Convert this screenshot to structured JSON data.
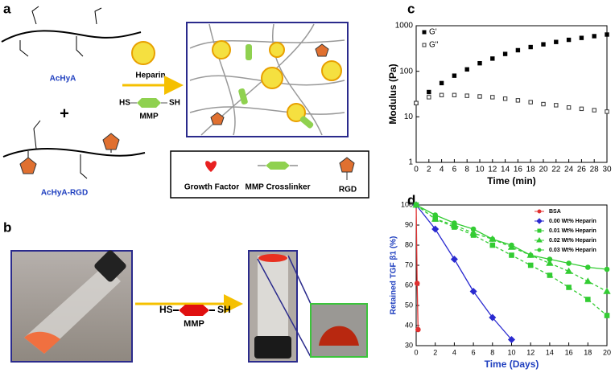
{
  "panels": {
    "a": {
      "label": "a",
      "top_left": "AcHyA",
      "plus": "+",
      "bottom_left": "AcHyA-RGD",
      "arrow_label": "Heparin",
      "linker_left": "HS",
      "linker_right": "SH",
      "linker_name": "MMP",
      "legend": [
        "Growth Factor",
        "MMP Crosslinker",
        "RGD"
      ]
    },
    "b": {
      "label": "b",
      "linker_left": "HS",
      "linker_right": "SH",
      "linker_name": "MMP"
    },
    "c": {
      "label": "c"
    },
    "d": {
      "label": "d"
    }
  },
  "chart_data": [
    {
      "type": "scatter",
      "xlabel": "Time (min)",
      "ylabel": "Modulus (Pa)",
      "log_y": true,
      "legend": "top-left",
      "x": [
        0,
        2,
        4,
        6,
        8,
        10,
        12,
        14,
        16,
        18,
        20,
        22,
        24,
        26,
        28,
        30
      ],
      "xlim": [
        0,
        30
      ],
      "xticks": [
        0,
        2,
        4,
        6,
        8,
        10,
        12,
        14,
        16,
        18,
        20,
        22,
        24,
        26,
        28,
        30
      ],
      "ylim": [
        1,
        1000
      ],
      "yticks": [
        1,
        10,
        100,
        1000
      ],
      "series": [
        {
          "name": "G'",
          "color": "#000000",
          "marker": "square",
          "filled": true,
          "values": [
            20,
            35,
            55,
            80,
            110,
            150,
            190,
            240,
            290,
            340,
            390,
            440,
            490,
            540,
            590,
            640
          ]
        },
        {
          "name": "G\"",
          "color": "#333333",
          "marker": "square",
          "filled": false,
          "values": [
            20,
            27,
            30,
            30,
            29,
            28,
            27,
            25,
            23,
            21,
            19,
            18,
            16,
            15,
            14,
            13
          ]
        }
      ]
    },
    {
      "type": "line",
      "xlabel": "Time (Days)",
      "ylabel": "Retained TGF β1 (%)",
      "axis_label_color": "#1f3fbf",
      "legend": "top-right",
      "xlim": [
        0,
        20
      ],
      "xticks": [
        0,
        2,
        4,
        6,
        8,
        10,
        12,
        14,
        16,
        18,
        20
      ],
      "ylim": [
        30,
        100
      ],
      "yticks": [
        30,
        40,
        50,
        60,
        70,
        80,
        90,
        100
      ],
      "series": [
        {
          "name": "BSA",
          "color": "#e03030",
          "marker": "circle",
          "filled": true,
          "x": [
            0,
            0.1,
            0.2
          ],
          "values": [
            100,
            61,
            38
          ]
        },
        {
          "name": "0.00 Wt% Heparin",
          "color": "#2a2ad0",
          "marker": "diamond",
          "filled": true,
          "x": [
            0,
            2,
            4,
            6,
            8,
            10
          ],
          "values": [
            100,
            88,
            73,
            57,
            44,
            33
          ]
        },
        {
          "name": "0.01 Wt% Heparin",
          "color": "#33cc33",
          "marker": "square",
          "filled": true,
          "dashed": true,
          "x": [
            0,
            2,
            4,
            6,
            8,
            10,
            12,
            14,
            16,
            18,
            20
          ],
          "values": [
            100,
            93,
            89,
            85,
            80,
            75,
            70,
            65,
            59,
            53,
            45
          ]
        },
        {
          "name": "0.02 Wt% Heparin",
          "color": "#33cc33",
          "marker": "triangle",
          "filled": true,
          "dashed": true,
          "x": [
            0,
            2,
            4,
            6,
            8,
            10,
            12,
            14,
            16,
            18,
            20
          ],
          "values": [
            100,
            93,
            90,
            86,
            83,
            79,
            75,
            71,
            67,
            62,
            57
          ]
        },
        {
          "name": "0.03 Wt% Heparin",
          "color": "#33cc33",
          "marker": "circle",
          "filled": true,
          "x": [
            0,
            2,
            4,
            6,
            8,
            10,
            12,
            14,
            16,
            18,
            20
          ],
          "values": [
            100,
            95,
            91,
            88,
            83,
            80,
            75,
            73,
            71,
            69,
            68
          ]
        }
      ]
    }
  ]
}
